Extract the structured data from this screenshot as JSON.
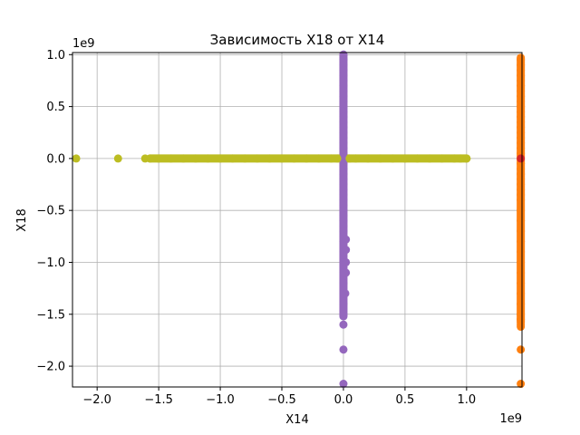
{
  "chart_data": {
    "type": "scatter",
    "title": "Зависимость X18 от X14",
    "xlabel": "X14",
    "ylabel": "X18",
    "x_offset_text": "1e9",
    "y_offset_text": "1e9",
    "xlim": [
      -2.2,
      1.45
    ],
    "ylim": [
      -2.2,
      1.02
    ],
    "x_ticks": [
      -2.0,
      -1.5,
      -1.0,
      -0.5,
      0.0,
      0.5,
      1.0
    ],
    "x_tick_labels": [
      "−2.0",
      "−1.5",
      "−1.0",
      "−0.5",
      "0.0",
      "0.5",
      "1.0"
    ],
    "y_ticks": [
      1.0,
      0.5,
      0.0,
      -0.5,
      -1.0,
      -1.5,
      -2.0
    ],
    "y_tick_labels": [
      "1.0",
      "0.5",
      "0.0",
      "−0.5",
      "−1.0",
      "−1.5",
      "−2.0"
    ],
    "grid": true,
    "series": [
      {
        "color": "#9467bd",
        "x": [
          0,
          0,
          0,
          0,
          0,
          0,
          0,
          0,
          0,
          0,
          0,
          0,
          0,
          0,
          0,
          0,
          0,
          0,
          0,
          0,
          0,
          0,
          0,
          0,
          0,
          0,
          0,
          0,
          0,
          0,
          0,
          0,
          0,
          0,
          0,
          0,
          0,
          0,
          0,
          0,
          0,
          0,
          0,
          0,
          0.02,
          0.02,
          0.02,
          0.02,
          0.015,
          0,
          0,
          0
        ],
        "y": [
          1.0,
          0.95,
          0.9,
          0.85,
          0.8,
          0.75,
          0.7,
          0.65,
          0.6,
          0.55,
          0.5,
          0.45,
          0.4,
          0.35,
          0.3,
          0.25,
          0.2,
          0.15,
          0.1,
          0.05,
          0.0,
          -0.05,
          -0.1,
          -0.15,
          -0.2,
          -0.25,
          -0.3,
          -0.35,
          -0.4,
          -0.45,
          -0.5,
          -0.55,
          -0.6,
          -0.65,
          -0.7,
          -0.75,
          -0.8,
          -0.9,
          -1.0,
          -1.1,
          -1.2,
          -1.3,
          -1.4,
          -1.5,
          -0.78,
          -0.88,
          -1.0,
          -1.1,
          -1.3,
          -1.6,
          -1.84,
          -2.17
        ]
      },
      {
        "color": "#ff7f0e",
        "x": [
          1.44,
          1.44,
          1.44,
          1.44,
          1.44,
          1.44,
          1.44,
          1.44,
          1.44,
          1.44,
          1.44,
          1.44,
          1.44,
          1.44,
          1.44,
          1.44,
          1.44,
          1.44,
          1.44,
          1.44,
          1.44,
          1.44,
          1.44,
          1.44,
          1.44,
          1.44,
          1.44,
          1.44,
          1.44,
          1.44,
          1.44,
          1.44,
          1.44,
          1.44,
          1.44,
          1.44,
          1.44,
          1.44,
          1.44,
          1.44,
          1.44,
          1.44,
          1.44
        ],
        "y": [
          0.95,
          0.9,
          0.85,
          0.8,
          0.75,
          0.7,
          0.65,
          0.6,
          0.55,
          0.5,
          0.45,
          0.4,
          0.35,
          0.3,
          0.25,
          0.2,
          0.15,
          0.1,
          0.05,
          -0.05,
          -0.1,
          -0.15,
          -0.2,
          -0.25,
          -0.3,
          -0.35,
          -0.4,
          -0.5,
          -0.6,
          -0.7,
          -0.8,
          -0.9,
          -1.0,
          -1.1,
          -1.2,
          -1.3,
          -1.4,
          -1.5,
          -1.55,
          -1.6,
          -1.62,
          -1.84,
          -2.17
        ]
      },
      {
        "color": "#d62728",
        "x": [
          1.44
        ],
        "y": [
          0.0
        ]
      },
      {
        "color": "#bcbd22",
        "x": [
          -2.17,
          -1.83,
          -1.61,
          -1.57,
          -1.5,
          -1.4,
          -1.3,
          -1.2,
          -1.1,
          -1.0,
          -0.9,
          -0.8,
          -0.7,
          -0.6,
          -0.5,
          -0.4,
          -0.3,
          -0.2,
          -0.1,
          -0.05,
          0.05,
          0.1,
          0.2,
          0.3,
          0.4,
          0.5,
          0.6,
          0.7,
          0.8,
          0.9,
          0.95,
          1.0
        ],
        "y": [
          0,
          0,
          0,
          0,
          0,
          0,
          0,
          0,
          0,
          0,
          0,
          0,
          0,
          0,
          0,
          0,
          0,
          0,
          0,
          0,
          0,
          0,
          0,
          0,
          0,
          0,
          0,
          0,
          0,
          0,
          0,
          0
        ]
      }
    ]
  }
}
